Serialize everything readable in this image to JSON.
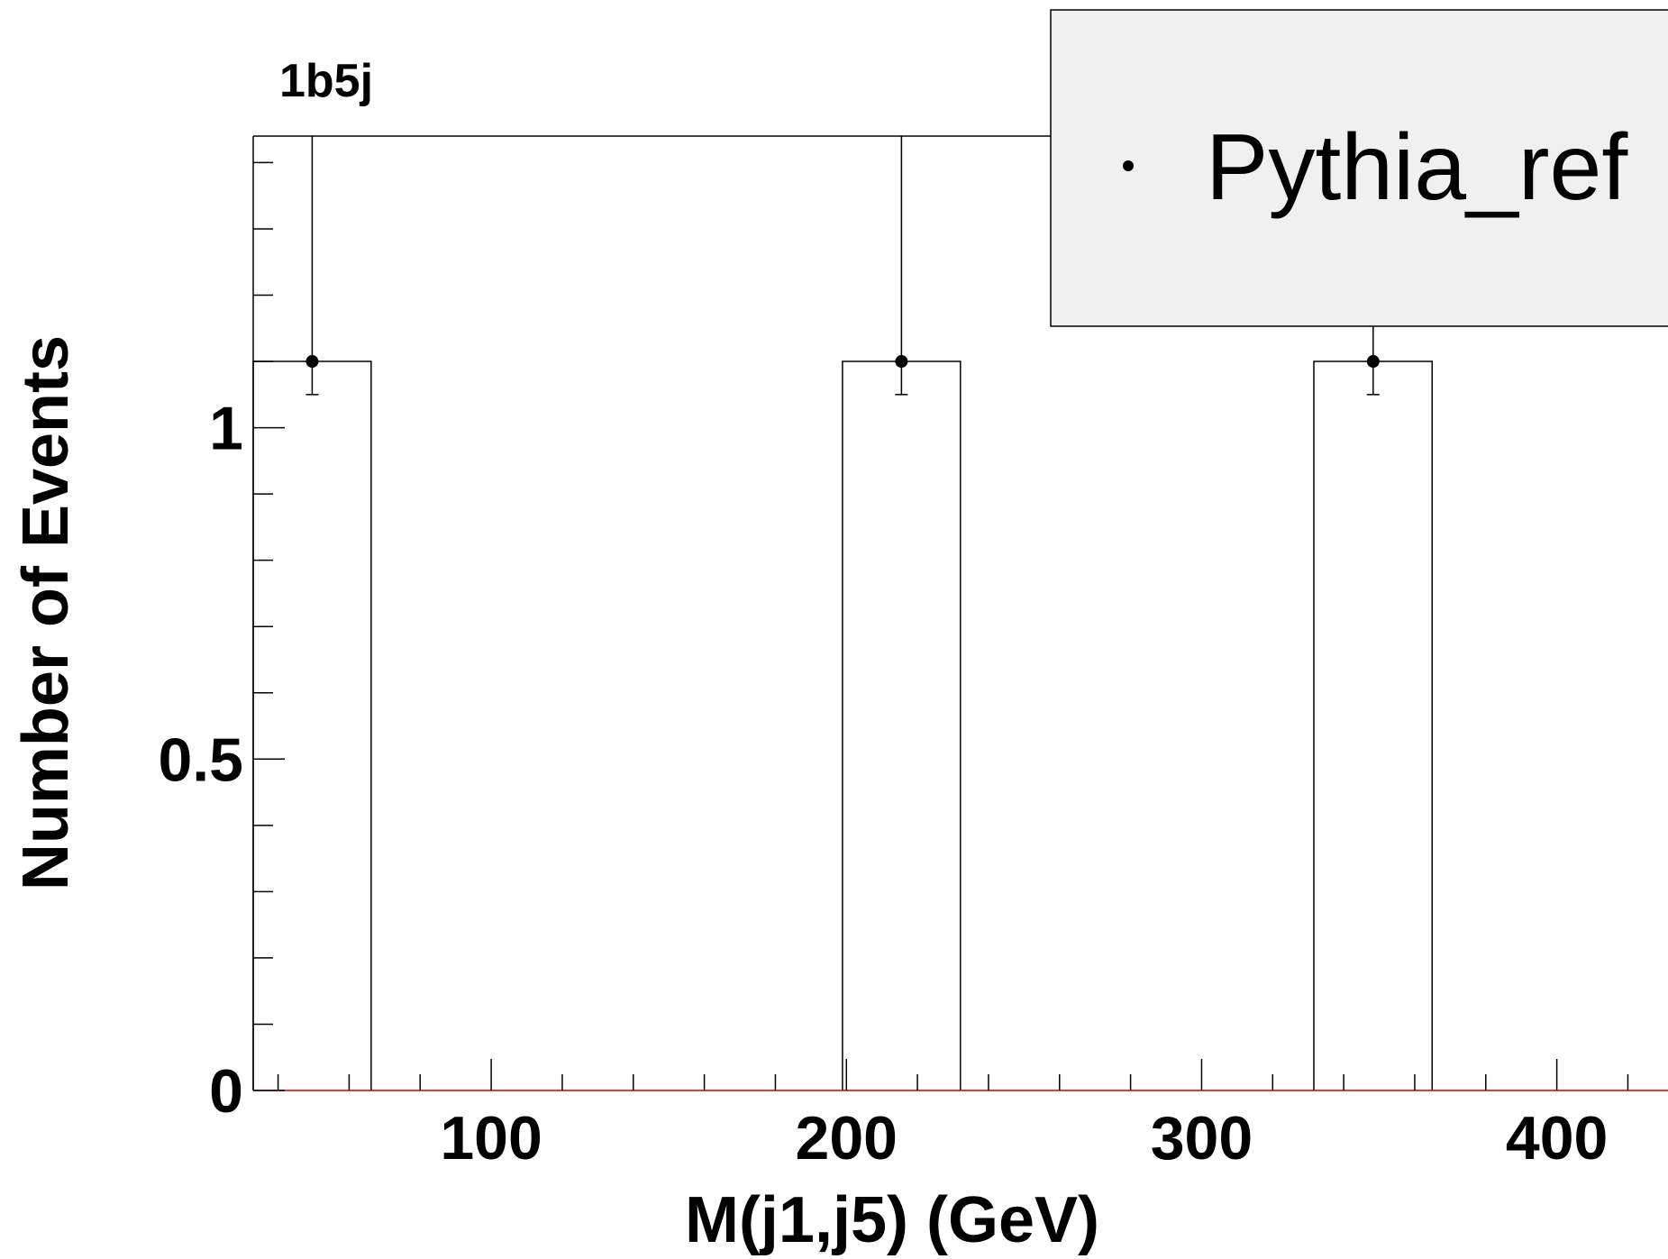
{
  "chart_data": {
    "type": "histogram",
    "title": "1b5j",
    "xlabel": "M(j1,j5) (GeV)",
    "ylabel": "Number of Events",
    "xlim": [
      33.0,
      431.3
    ],
    "ylim": [
      0,
      1.44
    ],
    "x_major_ticks": [
      100,
      200,
      300,
      400
    ],
    "x_tick_labels": [
      "100",
      "200",
      "300",
      "400"
    ],
    "y_major_ticks": [
      0,
      0.5,
      1
    ],
    "y_tick_labels": [
      "0",
      "0.5",
      "1"
    ],
    "bin_width": 33.2,
    "series": [
      {
        "name": "Pythia_ref",
        "bins": [
          {
            "low": 33.0,
            "high": 66.2,
            "center": 49.6,
            "value": 1.1,
            "err_low": 1.05,
            "err_high": 1.44
          },
          {
            "low": 198.9,
            "high": 232.1,
            "center": 215.5,
            "value": 1.1,
            "err_low": 1.05,
            "err_high": 1.44
          },
          {
            "low": 331.6,
            "high": 364.9,
            "center": 348.3,
            "value": 1.1,
            "err_low": 1.05,
            "err_high": 1.44
          }
        ]
      }
    ],
    "legend": {
      "position": "top-right",
      "entries": [
        "Pythia_ref"
      ]
    },
    "colors": {
      "line": "#000000",
      "legend_fill": "#f0f0f0",
      "baseline": "#cc0000"
    },
    "grid": false
  }
}
